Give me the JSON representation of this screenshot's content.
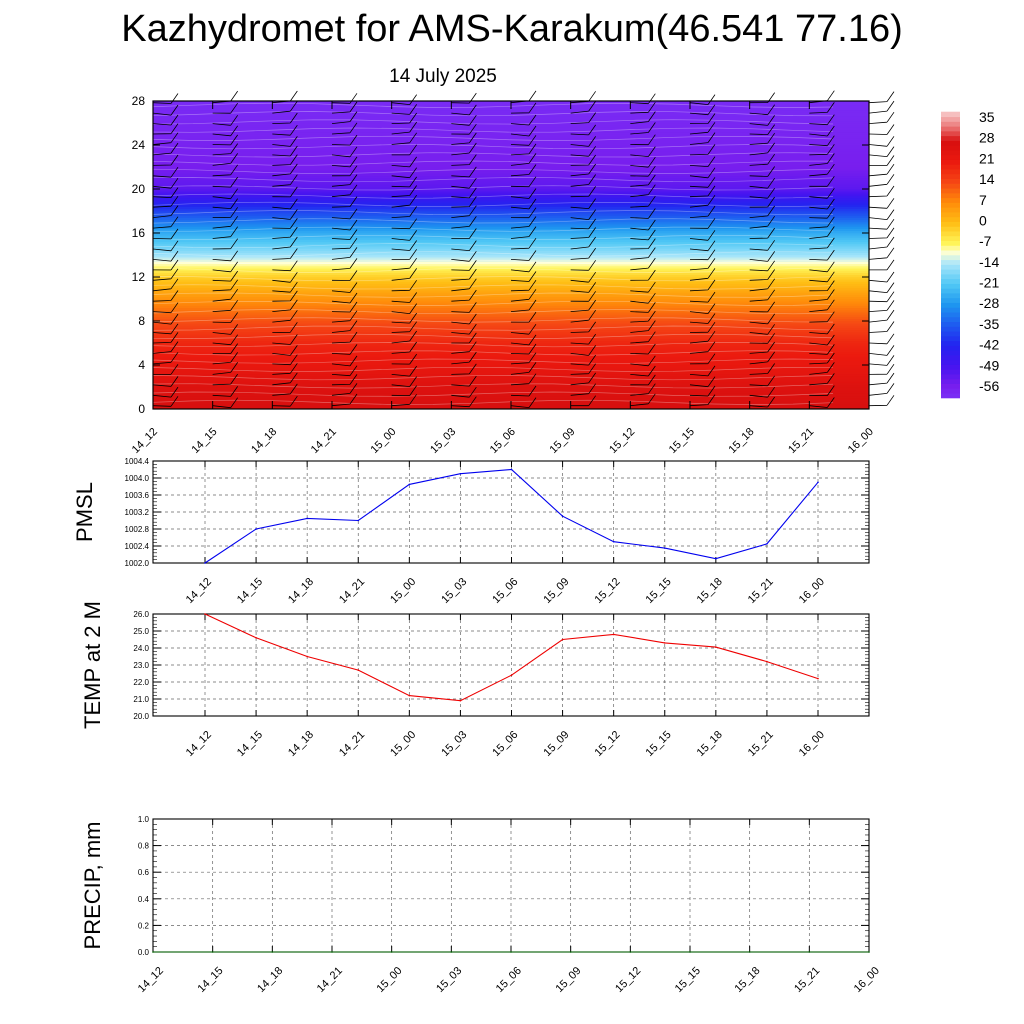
{
  "header": {
    "title": "Kazhydromet for AMS-Karakum(46.541 77.16)",
    "subtitle": "14 July 2025"
  },
  "chart_data": [
    {
      "id": "cross-section",
      "type": "heatmap",
      "x_ticks": [
        "14_12",
        "14_15",
        "14_18",
        "14_21",
        "15_00",
        "15_03",
        "15_06",
        "15_09",
        "15_12",
        "15_15",
        "15_18",
        "15_21",
        "16_00"
      ],
      "y_ticks": [
        0,
        4,
        8,
        12,
        16,
        20,
        24,
        28
      ],
      "ylim": [
        0,
        28
      ],
      "colorbar": {
        "labels": [
          35,
          28,
          21,
          14,
          7,
          0,
          -7,
          -14,
          -21,
          -28,
          -35,
          -42,
          -49,
          -56
        ],
        "range": [
          -60,
          38
        ]
      },
      "profile": {
        "levels": [
          0,
          2,
          4,
          6,
          8,
          10,
          12,
          13.3,
          14,
          16,
          18,
          20,
          22,
          24,
          26,
          28
        ],
        "values": [
          28,
          26,
          22,
          19,
          13,
          6,
          -2,
          -10,
          -15,
          -25,
          -38,
          -52,
          -56,
          -57,
          -58,
          -59
        ]
      },
      "wind_barbs": true
    },
    {
      "id": "pmsl",
      "type": "line",
      "ylabel": "PMSL",
      "ylim": [
        1002.0,
        1004.4
      ],
      "y_ticks": [
        "1002.0",
        "1002.4",
        "1002.8",
        "1003.2",
        "1003.6",
        "1004.0",
        "1004.4"
      ],
      "x_ticks": [
        "14_12",
        "14_15",
        "14_18",
        "14_21",
        "15_00",
        "15_03",
        "15_06",
        "15_09",
        "15_12",
        "15_15",
        "15_18",
        "15_21",
        "16_00"
      ],
      "values": [
        1002.0,
        1002.8,
        1003.05,
        1003.0,
        1003.85,
        1004.1,
        1004.2,
        1003.1,
        1002.5,
        1002.35,
        1002.1,
        1002.45,
        1003.9
      ],
      "color": "#0000ee"
    },
    {
      "id": "temp",
      "type": "line",
      "ylabel": "TEMP at 2 M",
      "ylim": [
        20.0,
        26.0
      ],
      "y_ticks": [
        "20.0",
        "21.0",
        "22.0",
        "23.0",
        "24.0",
        "25.0",
        "26.0"
      ],
      "x_ticks": [
        "14_12",
        "14_15",
        "14_18",
        "14_21",
        "15_00",
        "15_03",
        "15_06",
        "15_09",
        "15_12",
        "15_15",
        "15_18",
        "15_21",
        "16_00"
      ],
      "values": [
        26.0,
        24.6,
        23.5,
        22.7,
        21.2,
        20.9,
        22.4,
        24.5,
        24.8,
        24.3,
        24.05,
        23.2,
        22.2
      ],
      "color": "#ee0000"
    },
    {
      "id": "precip",
      "type": "line",
      "ylabel": "PRECIP, mm",
      "ylim": [
        0.0,
        1.0
      ],
      "y_ticks": [
        "0.0",
        "0.2",
        "0.4",
        "0.6",
        "0.8",
        "1.0"
      ],
      "x_ticks": [
        "14_12",
        "14_15",
        "14_18",
        "14_21",
        "15_00",
        "15_03",
        "15_06",
        "15_09",
        "15_12",
        "15_15",
        "15_18",
        "15_21",
        "16_00"
      ],
      "values": [
        0,
        0,
        0,
        0,
        0,
        0,
        0,
        0,
        0,
        0,
        0,
        0,
        0
      ],
      "color": "#006400"
    }
  ]
}
